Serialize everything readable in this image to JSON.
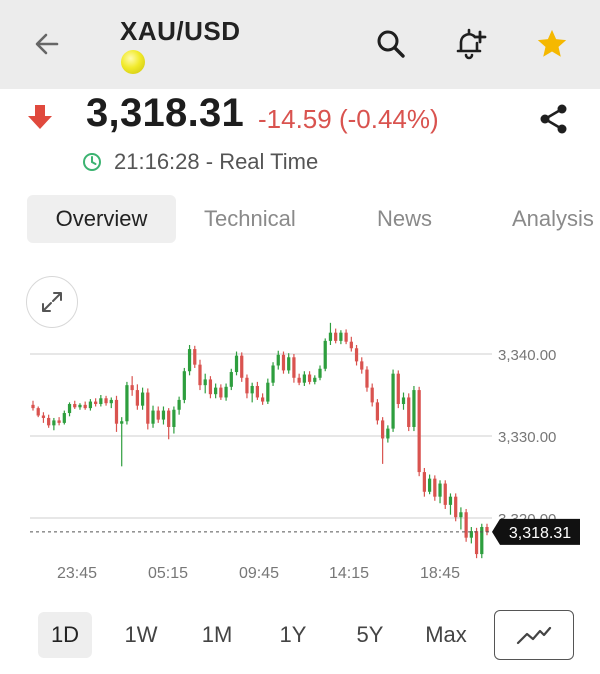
{
  "header": {
    "title": "XAU/USD",
    "icons": [
      "back-arrow-icon",
      "gold-coin-icon",
      "search-icon",
      "bell-plus-icon",
      "star-icon"
    ],
    "star_color": "#f5b800"
  },
  "quote": {
    "price": "3,318.31",
    "change": "-14.59 (-0.44%)",
    "direction": "down",
    "change_color": "#d9534f",
    "time": "21:16:28 - Real Time",
    "time_icon_color": "#3cb371"
  },
  "tabs": [
    {
      "label": "Overview",
      "active": true
    },
    {
      "label": "Technical",
      "active": false
    },
    {
      "label": "News",
      "active": false
    },
    {
      "label": "Analysis",
      "active": false
    }
  ],
  "chart_data": {
    "type": "candlestick",
    "up_color": "#2e9e3e",
    "down_color": "#d9534f",
    "y_ticks": [
      "3,340.00",
      "3,330.00",
      "3,320.00"
    ],
    "y_tick_values": [
      3340,
      3330,
      3320
    ],
    "x_ticks": [
      "23:45",
      "05:15",
      "09:45",
      "14:15",
      "18:45"
    ],
    "current_price_label": "3,318.31",
    "current_price": 3318.31,
    "grid": true,
    "candles": [
      [
        3333.8,
        3334.3,
        3333.1,
        3333.4
      ],
      [
        3333.4,
        3333.6,
        3332.3,
        3332.5
      ],
      [
        3332.5,
        3332.9,
        3331.6,
        3332.2
      ],
      [
        3332.2,
        3332.6,
        3331.0,
        3331.3
      ],
      [
        3331.3,
        3332.2,
        3330.7,
        3331.9
      ],
      [
        3331.9,
        3332.3,
        3331.3,
        3331.6
      ],
      [
        3331.6,
        3333.1,
        3331.4,
        3332.8
      ],
      [
        3332.8,
        3334.1,
        3332.4,
        3333.9
      ],
      [
        3333.9,
        3334.3,
        3333.3,
        3333.5
      ],
      [
        3333.5,
        3334.0,
        3333.2,
        3333.8
      ],
      [
        3333.8,
        3334.2,
        3333.2,
        3333.4
      ],
      [
        3333.4,
        3334.5,
        3333.1,
        3334.2
      ],
      [
        3334.2,
        3334.6,
        3333.6,
        3333.9
      ],
      [
        3333.9,
        3335.0,
        3333.6,
        3334.6
      ],
      [
        3334.6,
        3334.9,
        3333.7,
        3334.0
      ],
      [
        3334.0,
        3334.7,
        3333.4,
        3334.4
      ],
      [
        3334.4,
        3334.9,
        3330.5,
        3331.5
      ],
      [
        3331.5,
        3332.3,
        3326.3,
        3331.8
      ],
      [
        3331.8,
        3336.6,
        3331.4,
        3336.2
      ],
      [
        3336.2,
        3337.3,
        3334.9,
        3335.6
      ],
      [
        3335.6,
        3336.3,
        3333.2,
        3333.7
      ],
      [
        3333.7,
        3335.9,
        3333.2,
        3335.3
      ],
      [
        3335.3,
        3335.8,
        3330.8,
        3331.5
      ],
      [
        3331.5,
        3333.7,
        3331.0,
        3333.1
      ],
      [
        3333.1,
        3333.6,
        3331.6,
        3332.0
      ],
      [
        3332.0,
        3333.6,
        3331.4,
        3333.1
      ],
      [
        3333.1,
        3333.4,
        3329.6,
        3331.1
      ],
      [
        3331.1,
        3333.6,
        3330.3,
        3333.2
      ],
      [
        3333.2,
        3334.8,
        3332.6,
        3334.4
      ],
      [
        3334.4,
        3338.3,
        3334.0,
        3337.9
      ],
      [
        3337.9,
        3341.1,
        3337.4,
        3340.6
      ],
      [
        3340.6,
        3341.0,
        3338.3,
        3338.7
      ],
      [
        3338.7,
        3339.3,
        3335.6,
        3336.2
      ],
      [
        3336.2,
        3337.6,
        3335.2,
        3336.9
      ],
      [
        3336.9,
        3337.3,
        3334.6,
        3335.1
      ],
      [
        3335.1,
        3336.4,
        3334.6,
        3335.9
      ],
      [
        3335.9,
        3336.3,
        3334.4,
        3334.7
      ],
      [
        3334.7,
        3336.4,
        3334.3,
        3336.0
      ],
      [
        3336.0,
        3338.2,
        3335.6,
        3337.8
      ],
      [
        3337.8,
        3340.3,
        3337.4,
        3339.8
      ],
      [
        3339.8,
        3340.2,
        3336.6,
        3337.1
      ],
      [
        3337.1,
        3337.5,
        3334.6,
        3335.2
      ],
      [
        3335.2,
        3336.5,
        3334.1,
        3336.1
      ],
      [
        3336.1,
        3336.6,
        3334.4,
        3334.7
      ],
      [
        3334.7,
        3335.2,
        3333.8,
        3334.2
      ],
      [
        3334.2,
        3337.0,
        3333.9,
        3336.5
      ],
      [
        3336.5,
        3339.0,
        3336.1,
        3338.6
      ],
      [
        3338.6,
        3340.4,
        3338.1,
        3339.9
      ],
      [
        3339.9,
        3340.3,
        3337.6,
        3338.0
      ],
      [
        3338.0,
        3340.1,
        3337.6,
        3339.6
      ],
      [
        3339.6,
        3340.0,
        3336.5,
        3337.1
      ],
      [
        3337.1,
        3337.6,
        3336.2,
        3336.5
      ],
      [
        3336.5,
        3337.9,
        3336.1,
        3337.5
      ],
      [
        3337.5,
        3337.9,
        3336.3,
        3336.6
      ],
      [
        3336.6,
        3337.4,
        3336.3,
        3337.1
      ],
      [
        3337.1,
        3338.6,
        3336.8,
        3338.2
      ],
      [
        3338.2,
        3341.9,
        3337.9,
        3341.6
      ],
      [
        3341.6,
        3343.8,
        3341.1,
        3342.6
      ],
      [
        3342.6,
        3343.1,
        3341.3,
        3341.6
      ],
      [
        3341.6,
        3342.9,
        3341.2,
        3342.6
      ],
      [
        3342.6,
        3343.0,
        3341.2,
        3341.5
      ],
      [
        3341.5,
        3342.1,
        3340.3,
        3340.7
      ],
      [
        3340.7,
        3341.1,
        3338.6,
        3339.1
      ],
      [
        3339.1,
        3339.6,
        3337.6,
        3338.1
      ],
      [
        3338.1,
        3338.5,
        3335.4,
        3335.9
      ],
      [
        3335.9,
        3336.4,
        3333.6,
        3334.1
      ],
      [
        3334.1,
        3334.5,
        3331.4,
        3331.9
      ],
      [
        3331.9,
        3332.3,
        3326.6,
        3329.7
      ],
      [
        3329.7,
        3331.3,
        3329.2,
        3330.9
      ],
      [
        3330.9,
        3338.1,
        3330.5,
        3337.6
      ],
      [
        3337.6,
        3338.0,
        3333.4,
        3333.9
      ],
      [
        3333.9,
        3335.3,
        3333.2,
        3334.7
      ],
      [
        3334.7,
        3335.2,
        3330.6,
        3331.1
      ],
      [
        3331.1,
        3336.1,
        3330.6,
        3335.6
      ],
      [
        3335.6,
        3336.0,
        3325.1,
        3325.6
      ],
      [
        3325.6,
        3326.1,
        3322.6,
        3323.2
      ],
      [
        3323.2,
        3325.3,
        3322.9,
        3324.8
      ],
      [
        3324.8,
        3325.2,
        3322.1,
        3322.6
      ],
      [
        3322.6,
        3324.6,
        3321.8,
        3324.2
      ],
      [
        3324.2,
        3324.6,
        3321.1,
        3321.6
      ],
      [
        3321.6,
        3323.0,
        3320.4,
        3322.6
      ],
      [
        3322.6,
        3323.0,
        3319.6,
        3320.1
      ],
      [
        3320.1,
        3321.3,
        3318.6,
        3320.7
      ],
      [
        3320.7,
        3321.1,
        3317.1,
        3317.6
      ],
      [
        3317.6,
        3318.9,
        3316.9,
        3318.4
      ],
      [
        3318.4,
        3318.8,
        3315.1,
        3315.6
      ],
      [
        3315.6,
        3319.3,
        3315.1,
        3318.9
      ],
      [
        3318.9,
        3319.3,
        3317.9,
        3318.31
      ]
    ]
  },
  "ranges": [
    {
      "label": "1D",
      "active": true
    },
    {
      "label": "1W",
      "active": false
    },
    {
      "label": "1M",
      "active": false
    },
    {
      "label": "1Y",
      "active": false
    },
    {
      "label": "5Y",
      "active": false
    },
    {
      "label": "Max",
      "active": false
    }
  ],
  "chart_type_icon": "line-chart-icon"
}
